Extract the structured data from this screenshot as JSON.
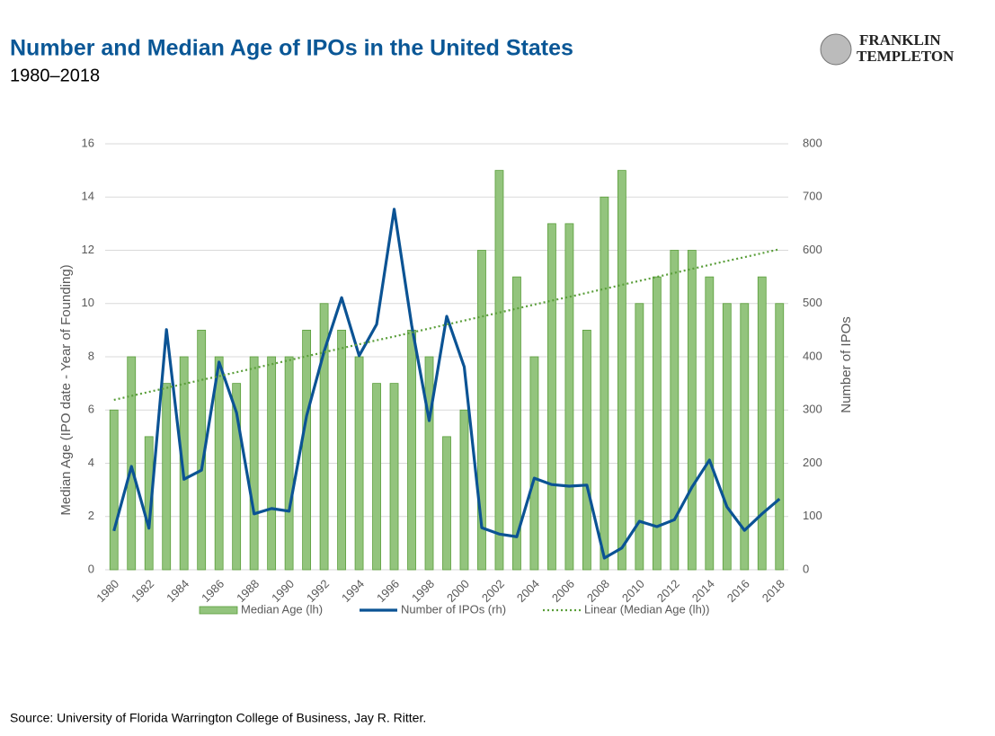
{
  "header": {
    "title": "Number and Median Age of IPOs in the United States",
    "subtitle": "1980–2018",
    "logo": [
      "FRANKLIN",
      "TEMPLETON"
    ]
  },
  "chart_data": {
    "type": "bar",
    "categories": [
      "1980",
      null,
      "1982",
      null,
      "1984",
      null,
      "1986",
      null,
      "1988",
      null,
      "1990",
      null,
      "1992",
      null,
      "1994",
      null,
      "1996",
      null,
      "1998",
      null,
      "2000",
      null,
      "2002",
      null,
      "2004",
      null,
      "2006",
      null,
      "2008",
      null,
      "2010",
      null,
      "2012",
      null,
      "2014",
      null,
      "2016",
      null,
      "2018"
    ],
    "series": [
      {
        "name": "Median Age (lh)",
        "type": "bar",
        "color": "#93c47d",
        "values": [
          6,
          8,
          5,
          7,
          8,
          9,
          8,
          7,
          8,
          8,
          8,
          9,
          10,
          9,
          8,
          7,
          7,
          9,
          8,
          5,
          6,
          12,
          15,
          11,
          8,
          13,
          13,
          9,
          14,
          15,
          10,
          11,
          12,
          12,
          11,
          10,
          10,
          11,
          10
        ]
      },
      {
        "name": "Number of IPOs (rh)",
        "type": "line",
        "axis": "y2",
        "color": "#0b5394",
        "values": [
          73,
          194,
          78,
          451,
          170,
          187,
          390,
          295,
          105,
          115,
          110,
          289,
          410,
          511,
          402,
          461,
          677,
          459,
          280,
          476,
          381,
          79,
          67,
          62,
          172,
          160,
          157,
          159,
          22,
          41,
          91,
          81,
          94,
          155,
          206,
          118,
          74,
          105,
          133
        ]
      },
      {
        "name": "Linear (Median Age (lh))",
        "type": "trend",
        "color": "#5a9e3a",
        "values": [
          6.38,
          6.53,
          6.68,
          6.83,
          6.98,
          7.13,
          7.27,
          7.42,
          7.57,
          7.72,
          7.87,
          8.02,
          8.17,
          8.32,
          8.47,
          8.62,
          8.76,
          8.91,
          9.06,
          9.21,
          9.36,
          9.51,
          9.66,
          9.81,
          9.96,
          10.11,
          10.25,
          10.4,
          10.55,
          10.7,
          10.85,
          11.0,
          11.15,
          11.3,
          11.45,
          11.6,
          11.74,
          11.89,
          12.04
        ]
      }
    ],
    "ylabel": "Median Age (IPO date - Year of Founding)",
    "y2label": "Number of IPOs",
    "ylim": [
      0,
      16
    ],
    "yticks": [
      0,
      2,
      4,
      6,
      8,
      10,
      12,
      14,
      16
    ],
    "y2lim": [
      0,
      800
    ],
    "y2ticks": [
      0,
      100,
      200,
      300,
      400,
      500,
      600,
      700,
      800
    ],
    "grid": true
  },
  "footer": {
    "source": "Source: University of Florida Warrington College of Business, Jay R. Ritter."
  }
}
